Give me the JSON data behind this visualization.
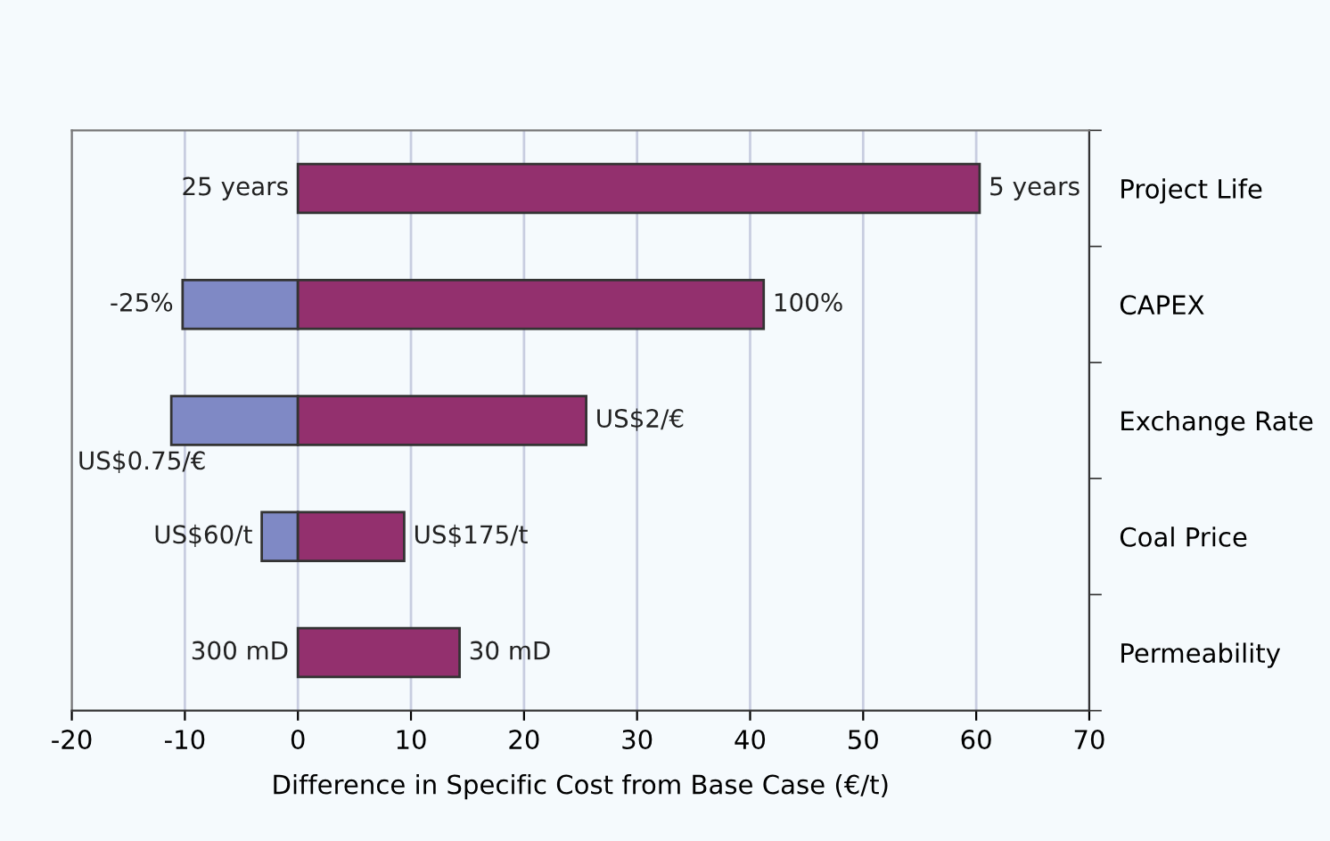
{
  "chart_data": {
    "type": "bar",
    "orientation": "horizontal",
    "stacked": true,
    "categories": [
      "Project Life",
      "CAPEX",
      "Exchange Rate",
      "Coal Price",
      "Permeability"
    ],
    "series": [
      {
        "color": "#7f89c5",
        "values": [
          null,
          -10.2,
          -11.2,
          -3.2,
          null
        ]
      },
      {
        "color": "#93306e",
        "values": [
          60.3,
          41.2,
          25.5,
          9.4,
          14.3
        ]
      }
    ],
    "annotations": [
      {
        "text": "25 years",
        "x": 0,
        "y": "Project Life"
      },
      {
        "text": "5 years",
        "x": 60.3,
        "y": "Project Life"
      },
      {
        "text": "-25%",
        "x": -10.2,
        "y": "CAPEX"
      },
      {
        "text": "100%",
        "x": 41.2,
        "y": "CAPEX"
      },
      {
        "text": "US$0.75/€",
        "x": -11.2,
        "y": "Exchange Rate"
      },
      {
        "text": "US$2/€",
        "x": 25.5,
        "y": "Exchange Rate"
      },
      {
        "text": "US$60/t",
        "x": -3.2,
        "y": "Coal Price"
      },
      {
        "text": "US$175/t",
        "x": 9.4,
        "y": "Coal Price"
      },
      {
        "text": "300 mD",
        "x": 0,
        "y": "Permeability"
      },
      {
        "text": "30 mD",
        "x": 14.3,
        "y": "Permeability"
      }
    ],
    "xlabel": "Difference in Specific Cost from Base Case (€/t)",
    "xlim": [
      -20,
      70
    ],
    "xticks": [
      -20,
      -10,
      0,
      10,
      20,
      30,
      40,
      50,
      60,
      70
    ],
    "grid": "x",
    "legend": false
  }
}
